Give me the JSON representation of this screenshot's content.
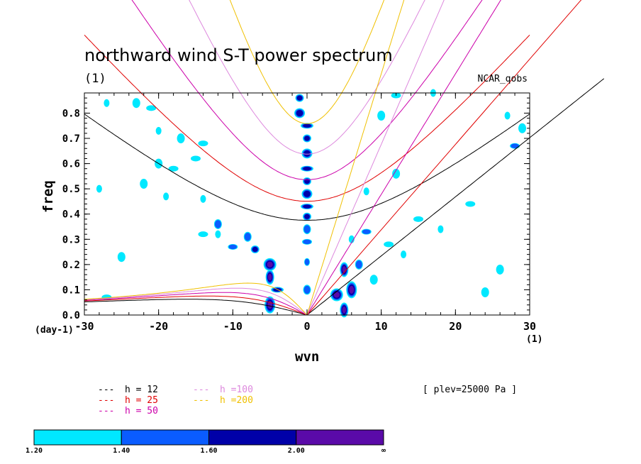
{
  "chart_data": {
    "type": "heatmap",
    "title": "northward wind S-T power spectrum",
    "units_label": "(1)",
    "source_label": "NCAR_qobs",
    "xlabel": "wvn",
    "ylabel": "freq",
    "x_unit_label": "(1)",
    "y_unit_label": "(day-1)",
    "xlim": [
      -30,
      30
    ],
    "ylim": [
      0,
      0.88
    ],
    "x_ticks": [
      "-30",
      "-20",
      "-10",
      "0",
      "10",
      "20",
      "30"
    ],
    "y_ticks": [
      "0.0",
      "0.1",
      "0.2",
      "0.3",
      "0.4",
      "0.5",
      "0.6",
      "0.7",
      "0.8"
    ],
    "annotation": "[ plev=25000 Pa ]",
    "dispersion_curves": [
      {
        "label": "h = 12",
        "h": 12,
        "color": "#000000"
      },
      {
        "label": "h = 25",
        "h": 25,
        "color": "#e00000"
      },
      {
        "label": "h = 50",
        "h": 50,
        "color": "#cc00aa"
      },
      {
        "label": "h =100",
        "h": 100,
        "color": "#dd88dd"
      },
      {
        "label": "h =200",
        "h": 200,
        "color": "#f0c000"
      }
    ],
    "colorbar": {
      "levels": [
        "1.20",
        "1.40",
        "1.60",
        "2.00",
        "∞"
      ],
      "colors": [
        "#00e8ff",
        "#0a5cff",
        "#0000a8",
        "#5a0aa8"
      ]
    },
    "contour_regions": [
      {
        "wvn": -1.0,
        "freq": 0.86,
        "level": 2
      },
      {
        "wvn": -1.0,
        "freq": 0.8,
        "level": 2
      },
      {
        "wvn": 0.0,
        "freq": 0.75,
        "level": 2
      },
      {
        "wvn": 0.0,
        "freq": 0.7,
        "level": 2
      },
      {
        "wvn": 0.0,
        "freq": 0.64,
        "level": 2
      },
      {
        "wvn": 0.0,
        "freq": 0.58,
        "level": 2
      },
      {
        "wvn": 0.0,
        "freq": 0.53,
        "level": 2
      },
      {
        "wvn": 0.0,
        "freq": 0.48,
        "level": 2
      },
      {
        "wvn": 0.0,
        "freq": 0.43,
        "level": 2
      },
      {
        "wvn": 0.0,
        "freq": 0.39,
        "level": 2
      },
      {
        "wvn": 0.0,
        "freq": 0.34,
        "level": 1
      },
      {
        "wvn": 0.0,
        "freq": 0.29,
        "level": 1
      },
      {
        "wvn": 0.0,
        "freq": 0.21,
        "level": 1
      },
      {
        "wvn": 0.0,
        "freq": 0.1,
        "level": 1
      },
      {
        "wvn": -5.0,
        "freq": 0.2,
        "level": 3
      },
      {
        "wvn": -5.0,
        "freq": 0.15,
        "level": 3
      },
      {
        "wvn": -5.0,
        "freq": 0.04,
        "level": 3
      },
      {
        "wvn": -4.0,
        "freq": 0.1,
        "level": 2
      },
      {
        "wvn": -7.0,
        "freq": 0.26,
        "level": 2
      },
      {
        "wvn": -8.0,
        "freq": 0.31,
        "level": 1
      },
      {
        "wvn": -10.0,
        "freq": 0.27,
        "level": 1
      },
      {
        "wvn": -12.0,
        "freq": 0.32,
        "level": 0
      },
      {
        "wvn": -12.0,
        "freq": 0.36,
        "level": 1
      },
      {
        "wvn": -14.0,
        "freq": 0.32,
        "level": 0
      },
      {
        "wvn": -14.0,
        "freq": 0.46,
        "level": 0
      },
      {
        "wvn": -20.0,
        "freq": 0.6,
        "level": 0
      },
      {
        "wvn": -18.0,
        "freq": 0.58,
        "level": 0
      },
      {
        "wvn": -19.0,
        "freq": 0.47,
        "level": 0
      },
      {
        "wvn": -22.0,
        "freq": 0.52,
        "level": 0
      },
      {
        "wvn": -15.0,
        "freq": 0.62,
        "level": 0
      },
      {
        "wvn": -27.0,
        "freq": 0.84,
        "level": 0
      },
      {
        "wvn": -23.0,
        "freq": 0.84,
        "level": 0
      },
      {
        "wvn": -21.0,
        "freq": 0.82,
        "level": 0
      },
      {
        "wvn": -20.0,
        "freq": 0.73,
        "level": 0
      },
      {
        "wvn": -17.0,
        "freq": 0.7,
        "level": 0
      },
      {
        "wvn": -14.0,
        "freq": 0.68,
        "level": 0
      },
      {
        "wvn": 5.0,
        "freq": 0.18,
        "level": 3
      },
      {
        "wvn": 6.0,
        "freq": 0.1,
        "level": 3
      },
      {
        "wvn": 4.0,
        "freq": 0.08,
        "level": 3
      },
      {
        "wvn": 5.0,
        "freq": 0.02,
        "level": 3
      },
      {
        "wvn": 7.0,
        "freq": 0.2,
        "level": 1
      },
      {
        "wvn": 8.0,
        "freq": 0.33,
        "level": 1
      },
      {
        "wvn": 6.0,
        "freq": 0.3,
        "level": 0
      },
      {
        "wvn": 9.0,
        "freq": 0.14,
        "level": 0
      },
      {
        "wvn": 11.0,
        "freq": 0.28,
        "level": 0
      },
      {
        "wvn": 13.0,
        "freq": 0.24,
        "level": 0
      },
      {
        "wvn": 12.0,
        "freq": 0.56,
        "level": 0
      },
      {
        "wvn": 15.0,
        "freq": 0.38,
        "level": 0
      },
      {
        "wvn": 18.0,
        "freq": 0.34,
        "level": 0
      },
      {
        "wvn": 26.0,
        "freq": 0.18,
        "level": 0
      },
      {
        "wvn": 28.0,
        "freq": 0.67,
        "level": 1
      },
      {
        "wvn": 27.0,
        "freq": 0.79,
        "level": 0
      },
      {
        "wvn": 29.0,
        "freq": 0.74,
        "level": 0
      },
      {
        "wvn": 22.0,
        "freq": 0.44,
        "level": 0
      },
      {
        "wvn": 8.0,
        "freq": 0.49,
        "level": 0
      },
      {
        "wvn": 10.0,
        "freq": 0.79,
        "level": 0
      },
      {
        "wvn": 12.0,
        "freq": 0.87,
        "level": 0
      },
      {
        "wvn": 17.0,
        "freq": 0.88,
        "level": 0
      },
      {
        "wvn": 24.0,
        "freq": 0.09,
        "level": 0
      },
      {
        "wvn": -27.0,
        "freq": 0.07,
        "level": 0
      },
      {
        "wvn": -28.0,
        "freq": 0.5,
        "level": 0
      },
      {
        "wvn": -25.0,
        "freq": 0.23,
        "level": 0
      }
    ]
  }
}
